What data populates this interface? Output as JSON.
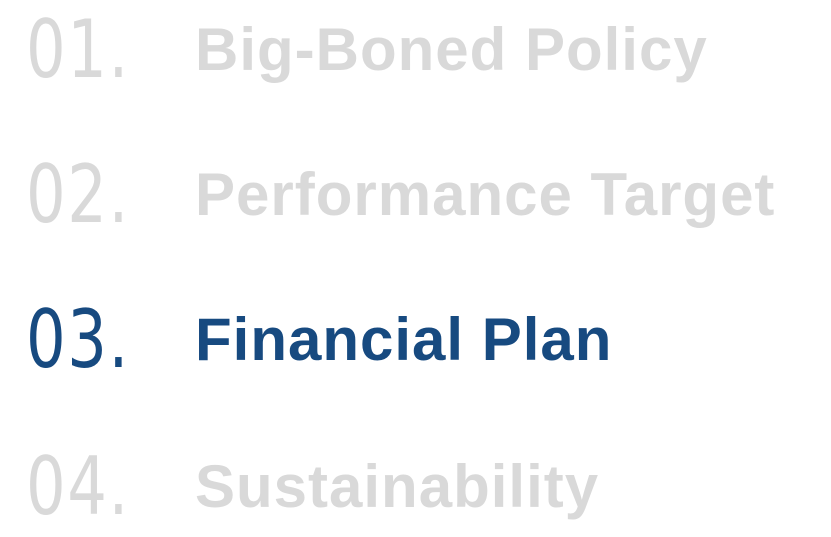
{
  "menu": {
    "items": [
      {
        "number": "01.",
        "label": "Big-Boned Policy"
      },
      {
        "number": "02.",
        "label": "Performance Target"
      },
      {
        "number": "03.",
        "label": "Financial Plan"
      },
      {
        "number": "04.",
        "label": "Sustainability"
      }
    ]
  }
}
